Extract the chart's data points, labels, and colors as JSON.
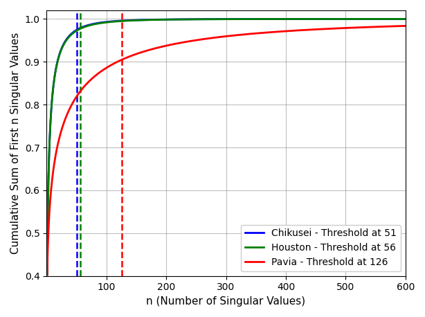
{
  "title": "",
  "xlabel": "n (Number of Singular Values)",
  "ylabel": "Cumulative Sum of First n Singular Values",
  "xlim": [
    0,
    600
  ],
  "ylim": [
    0.4,
    1.02
  ],
  "grid": true,
  "lines": [
    {
      "label": "Chikusei - Threshold at 51",
      "color": "#0000ff",
      "threshold": 51,
      "y_at_1": 0.403,
      "y_at_threshold": 0.975,
      "alpha": 0.42
    },
    {
      "label": "Houston - Threshold at 56",
      "color": "#008000",
      "threshold": 56,
      "y_at_1": 0.403,
      "y_at_threshold": 0.977,
      "alpha": 0.4
    },
    {
      "label": "Pavia - Threshold at 126",
      "color": "#ff0000",
      "threshold": 126,
      "y_at_1": 0.403,
      "y_at_threshold": 0.905,
      "alpha": 0.38
    }
  ],
  "yticks": [
    0.4,
    0.5,
    0.6,
    0.7,
    0.8,
    0.9,
    1.0
  ],
  "xticks": [
    100,
    200,
    300,
    400,
    500,
    600
  ],
  "legend_loc": "lower right",
  "linewidth": 2.0,
  "vline_linewidth": 1.8
}
